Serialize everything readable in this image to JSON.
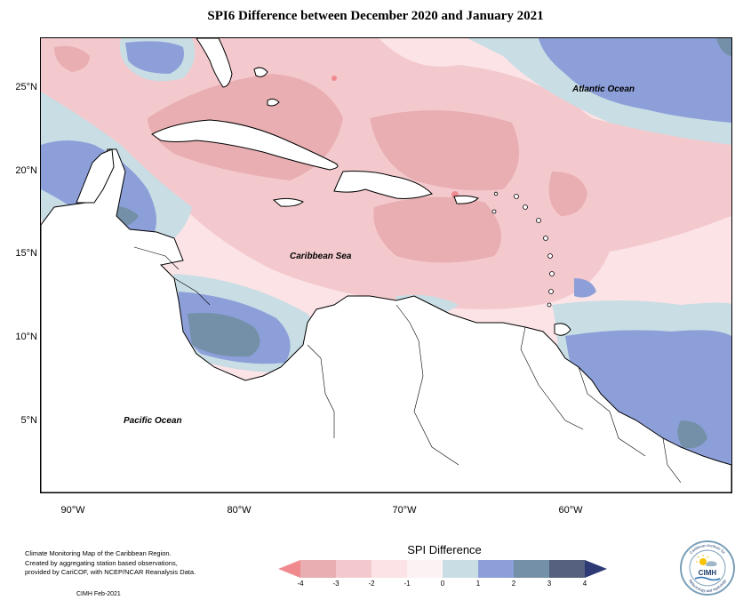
{
  "title": "SPI6 Difference between December 2020 and January 2021",
  "map": {
    "lat_labels": [
      "25°N",
      "20°N",
      "15°N",
      "10°N",
      "5°N"
    ],
    "lon_labels": [
      "90°W",
      "80°W",
      "70°W",
      "60°W"
    ],
    "ocean_labels": {
      "atlantic": "Atlantic Ocean",
      "caribbean": "Caribbean Sea",
      "pacific": "Pacific Ocean"
    }
  },
  "legend": {
    "title": "SPI Difference",
    "ticks": [
      "-4",
      "-3",
      "-2",
      "-1",
      "0",
      "1",
      "2",
      "3",
      "4"
    ],
    "colors": [
      "#f08a8f",
      "#e8aeb1",
      "#f4c9cd",
      "#fbe3e6",
      "#fdf2f3",
      "#c8dde4",
      "#8c9fd9",
      "#7390a8",
      "#56607f",
      "#2d3a73"
    ]
  },
  "credits": {
    "line1": "Climate Monitoring Map of the Caribbean Region.",
    "line2": "Created by aggregating station based observations,",
    "line3": "provided by CariCOF, with NCEP/NCAR Reanalysis Data.",
    "date": "CIMH Feb-2021"
  },
  "logo": {
    "text": "CIMH",
    "ring_top": "Caribbean Institute for",
    "ring_bottom": "Meteorology and Hydrology"
  }
}
